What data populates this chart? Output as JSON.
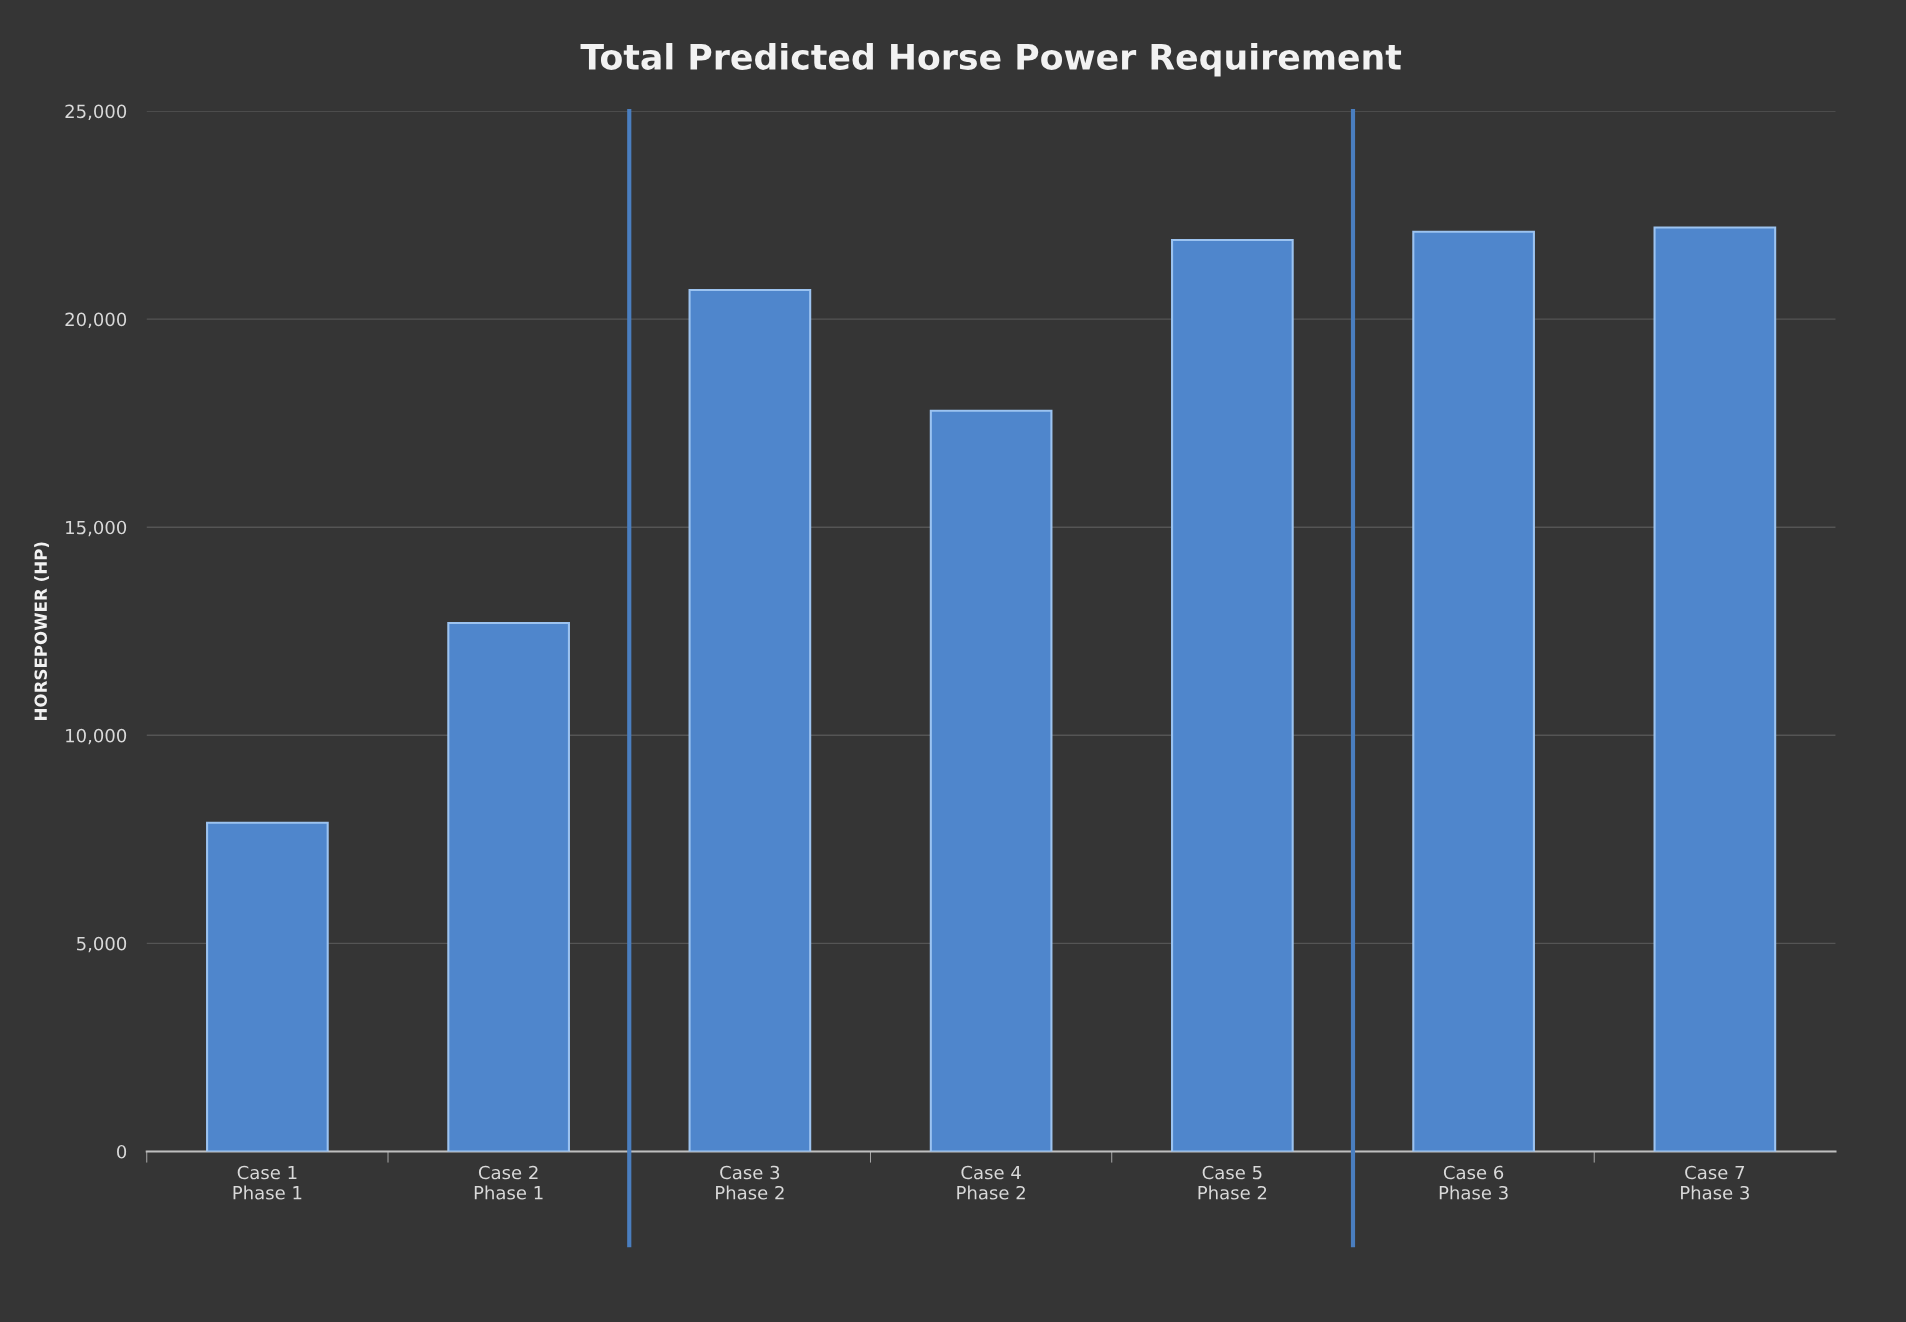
{
  "chart_data": {
    "type": "bar",
    "title": "Total Predicted Horse Power Requirement",
    "ylabel": "HORSEPOWER (HP)",
    "categories": [
      "Case 1\nPhase 1",
      "Case 2\nPhase 1",
      "Case 3\nPhase 2",
      "Case 4\nPhase 2",
      "Case 5\nPhase 2",
      "Case 6\nPhase 3",
      "Case 7\nPhase 3"
    ],
    "values": [
      7900,
      12700,
      20700,
      17800,
      21900,
      22100,
      22200
    ],
    "color": "#4f86cc",
    "ylim": [
      0,
      25000
    ],
    "yticks": [
      {
        "value": 0,
        "label": "0"
      },
      {
        "value": 5000,
        "label": "5,000"
      },
      {
        "value": 10000,
        "label": "10,000"
      },
      {
        "value": 15000,
        "label": "15,000"
      },
      {
        "value": 20000,
        "label": "20,000"
      },
      {
        "value": 25000,
        "label": "25,000"
      }
    ],
    "grid": "y"
  }
}
